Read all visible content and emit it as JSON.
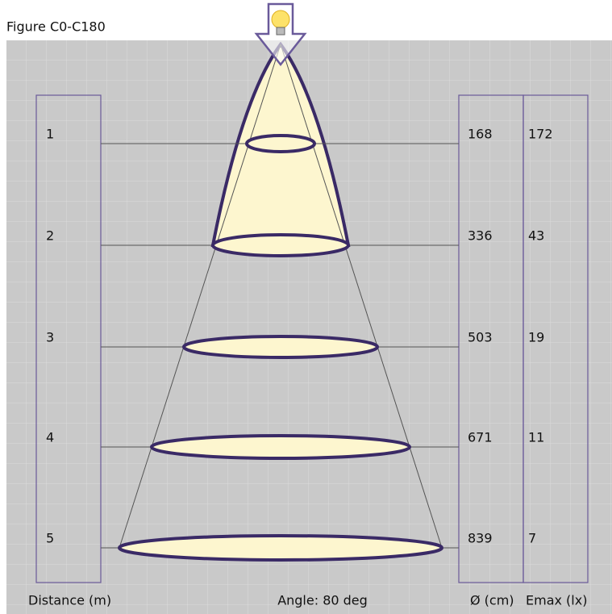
{
  "title": "Figure C0-C180",
  "rows": [
    {
      "distance": "1",
      "diameter": "168",
      "emax": "172"
    },
    {
      "distance": "2",
      "diameter": "336",
      "emax": "43"
    },
    {
      "distance": "3",
      "diameter": "503",
      "emax": "19"
    },
    {
      "distance": "4",
      "diameter": "671",
      "emax": "11"
    },
    {
      "distance": "5",
      "diameter": "839",
      "emax": "7"
    }
  ],
  "footer": {
    "distance": "Distance (m)",
    "angle": "Angle: 80 deg",
    "diameter": "Ø (cm)",
    "emax": "Emax (lx)"
  }
}
